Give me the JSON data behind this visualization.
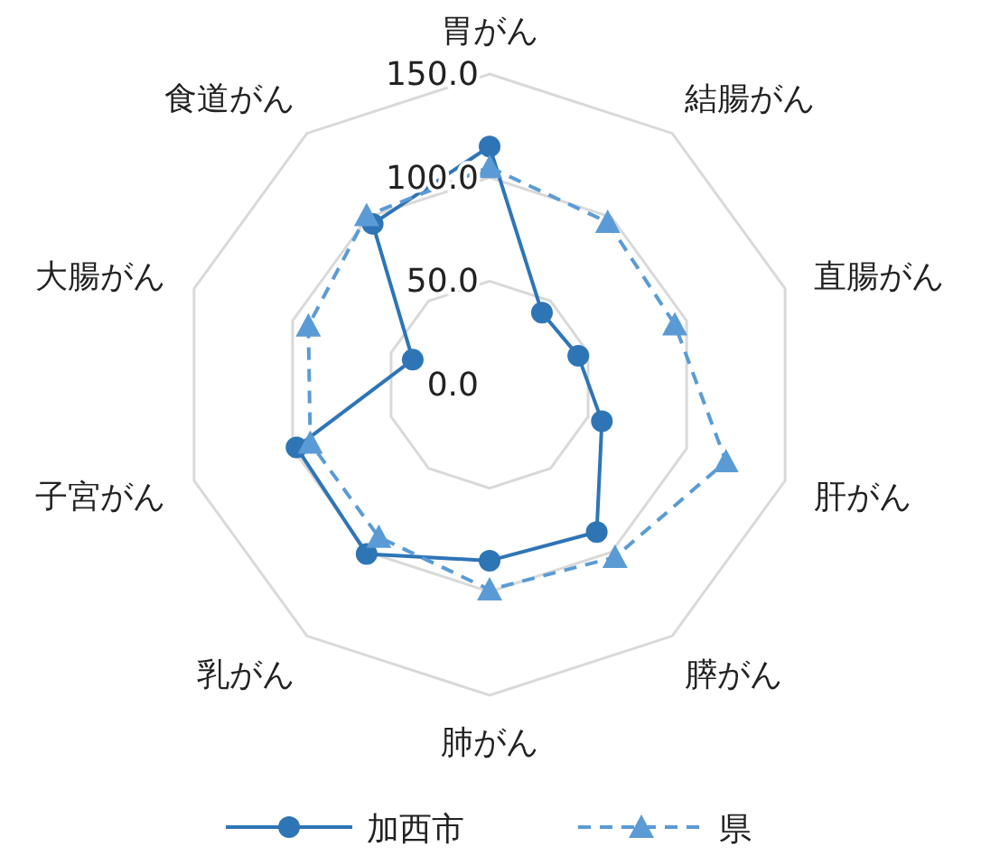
{
  "chart_data": {
    "type": "radar",
    "categories": [
      "胃がん",
      "結腸がん",
      "直腸がん",
      "肝がん",
      "膵がん",
      "肺がん",
      "乳がん",
      "子宮がん",
      "大腸がん",
      "食道がん"
    ],
    "ylim": [
      0,
      150
    ],
    "yticks": [
      {
        "value": 0,
        "label": "0.0"
      },
      {
        "value": 50,
        "label": "50.0"
      },
      {
        "value": 100,
        "label": "100.0"
      },
      {
        "value": 150,
        "label": "150.0"
      }
    ],
    "grid": true,
    "legend": "bottom",
    "series": [
      {
        "name": "加西市",
        "color": "#2e75b6",
        "marker": "circle",
        "line_style": "solid",
        "values": [
          115,
          43,
          45,
          57,
          88,
          85,
          101,
          98,
          39,
          96
        ]
      },
      {
        "name": "県",
        "color": "#5b9bd5",
        "marker": "triangle",
        "line_style": "dashed",
        "values": [
          105,
          97,
          94,
          120,
          103,
          99,
          91,
          91,
          92,
          101
        ]
      }
    ]
  }
}
